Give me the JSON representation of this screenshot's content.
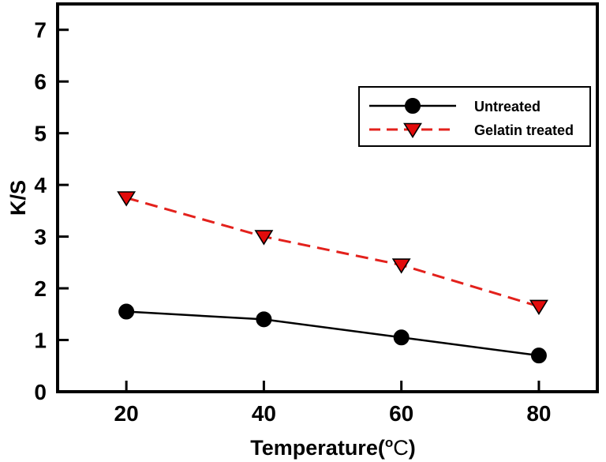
{
  "figure": {
    "background": "#ffffff",
    "frame_color": "#000000"
  },
  "chart_data": {
    "type": "line",
    "x": [
      20,
      40,
      60,
      80
    ],
    "series": [
      {
        "name": "Untreated",
        "values": [
          1.55,
          1.4,
          1.05,
          0.7
        ],
        "color": "#000000",
        "marker": "circle",
        "marker_fill": "#000000",
        "marker_edge": "#000000",
        "line_style": "solid",
        "line_width": 2.5
      },
      {
        "name": "Gelatin treated",
        "values": [
          3.75,
          3.0,
          2.45,
          1.65
        ],
        "color": "#e3211c",
        "marker": "triangle-down",
        "marker_fill": "#e30b0b",
        "marker_edge": "#000000",
        "line_style": "dashed",
        "line_width": 3
      }
    ],
    "title": "",
    "xlabel": {
      "text": "Temperature(°C)",
      "pre": "Temperature(",
      "sup": "o",
      "unit": "C",
      "post": ")"
    },
    "ylabel": "K/S",
    "xlim": [
      10,
      88.5
    ],
    "ylim": [
      0,
      7.5
    ],
    "xticks": [
      20,
      40,
      60,
      80
    ],
    "yticks": [
      0,
      1,
      2,
      3,
      4,
      5,
      6,
      7
    ],
    "grid": false,
    "legend": {
      "position": "inside-top-right",
      "entries": [
        "Untreated",
        "Gelatin treated"
      ]
    }
  }
}
